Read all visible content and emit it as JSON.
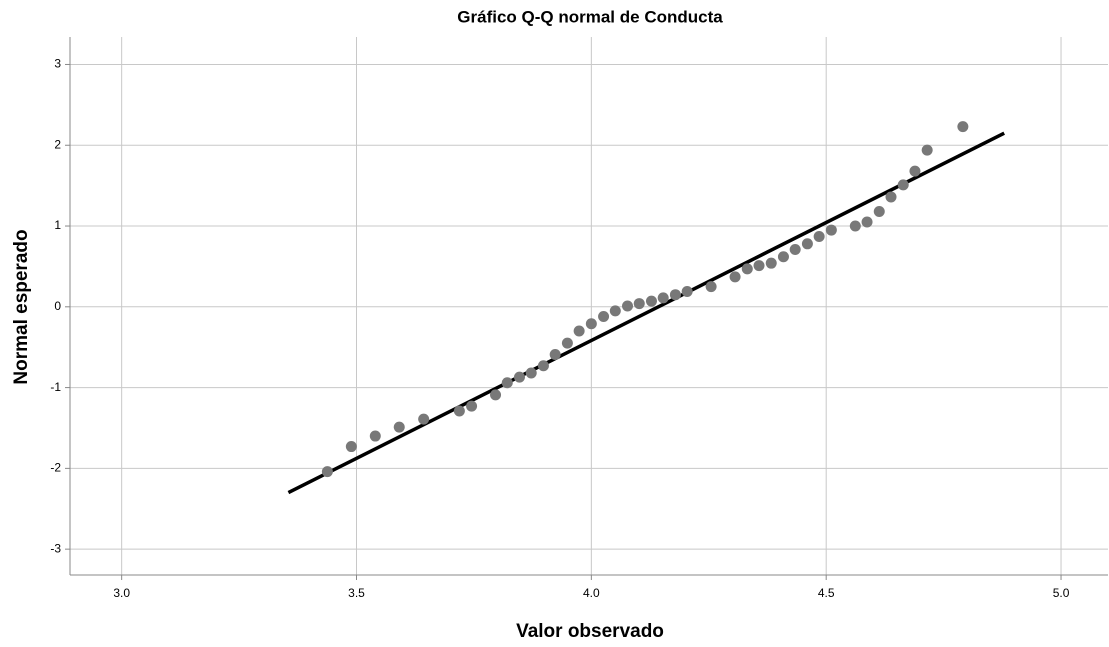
{
  "chart_data": {
    "type": "scatter",
    "title": "Gráfico Q-Q normal de Conducta",
    "x_label": "Valor observado",
    "y_label": "Normal esperado",
    "x": [
      3.438,
      3.489,
      3.54,
      3.591,
      3.643,
      3.719,
      3.745,
      3.796,
      3.821,
      3.847,
      3.872,
      3.898,
      3.923,
      3.949,
      3.974,
      4.0,
      4.026,
      4.051,
      4.077,
      4.102,
      4.128,
      4.153,
      4.179,
      4.204,
      4.255,
      4.306,
      4.332,
      4.357,
      4.383,
      4.409,
      4.434,
      4.46,
      4.485,
      4.511,
      4.562,
      4.587,
      4.613,
      4.638,
      4.664,
      4.689,
      4.715,
      4.791
    ],
    "y": [
      -2.04,
      -1.73,
      -1.6,
      -1.49,
      -1.39,
      -1.29,
      -1.23,
      -1.09,
      -0.94,
      -0.87,
      -0.82,
      -0.73,
      -0.59,
      -0.45,
      -0.3,
      -0.21,
      -0.12,
      -0.05,
      0.01,
      0.04,
      0.07,
      0.11,
      0.15,
      0.19,
      0.25,
      0.37,
      0.47,
      0.51,
      0.54,
      0.62,
      0.71,
      0.78,
      0.87,
      0.95,
      1.0,
      1.05,
      1.18,
      1.36,
      1.51,
      1.68,
      1.94,
      2.23
    ],
    "color": "#787878",
    "reference_line": {
      "x": [
        3.355,
        4.879
      ],
      "y": [
        -2.3,
        2.15
      ],
      "color": "#000000"
    },
    "xlim": [
      2.89,
      5.1
    ],
    "ylim": [
      -3.32,
      3.34
    ],
    "xticks": [
      {
        "value": 3,
        "label": "3.0"
      },
      3.5,
      {
        "value": 4,
        "label": "4.0"
      },
      4.5,
      {
        "value": 5,
        "label": "5.0"
      }
    ],
    "yticks": [
      -3,
      -2,
      -1,
      0,
      1,
      2,
      3
    ],
    "grid": true
  }
}
